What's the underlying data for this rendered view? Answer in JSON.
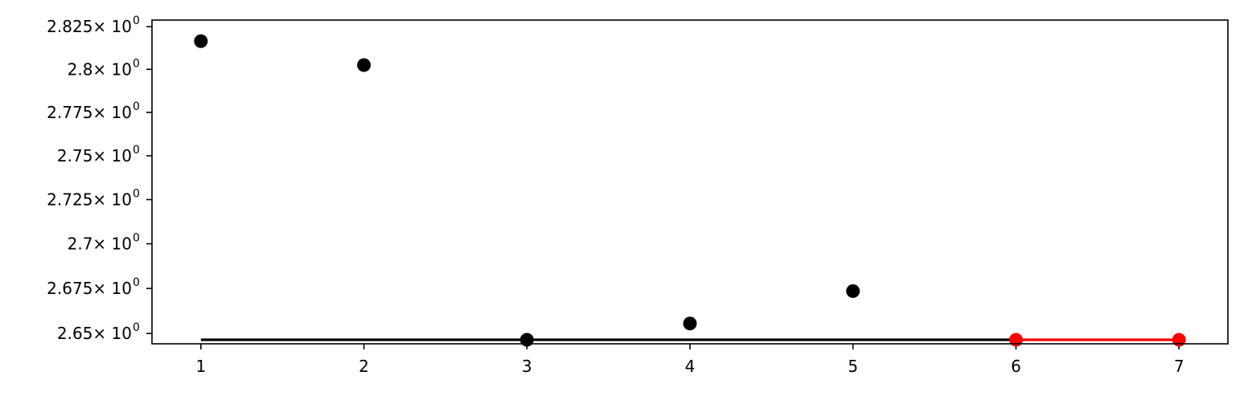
{
  "chart_data": {
    "type": "scatter",
    "title": "",
    "xlabel": "",
    "ylabel": "",
    "xlim": [
      0.7,
      7.3
    ],
    "ylim": [
      2.6443,
      2.8289
    ],
    "y_scale": "log",
    "grid": false,
    "x_ticks": [
      {
        "value": 1,
        "label": "1"
      },
      {
        "value": 2,
        "label": "2"
      },
      {
        "value": 3,
        "label": "3"
      },
      {
        "value": 4,
        "label": "4"
      },
      {
        "value": 5,
        "label": "5"
      },
      {
        "value": 6,
        "label": "6"
      },
      {
        "value": 7,
        "label": "7"
      }
    ],
    "y_ticks": [
      {
        "value": 2.825,
        "mantissa": "2.825",
        "base": "× 10",
        "exponent": "0"
      },
      {
        "value": 2.8,
        "mantissa": "2.8",
        "base": "× 10",
        "exponent": "0"
      },
      {
        "value": 2.775,
        "mantissa": "2.775",
        "base": "× 10",
        "exponent": "0"
      },
      {
        "value": 2.75,
        "mantissa": "2.75",
        "base": "× 10",
        "exponent": "0"
      },
      {
        "value": 2.725,
        "mantissa": "2.725",
        "base": "× 10",
        "exponent": "0"
      },
      {
        "value": 2.7,
        "mantissa": "2.7",
        "base": "× 10",
        "exponent": "0"
      },
      {
        "value": 2.675,
        "mantissa": "2.675",
        "base": "× 10",
        "exponent": "0"
      },
      {
        "value": 2.65,
        "mantissa": "2.65",
        "base": "× 10",
        "exponent": "0"
      }
    ],
    "series": [
      {
        "color": "#000000",
        "style": "markers",
        "x": [
          1,
          2,
          3,
          4,
          5
        ],
        "y": [
          2.8165,
          2.8025,
          2.6465,
          2.6555,
          2.6735
        ]
      },
      {
        "color": "#000000",
        "style": "line",
        "x": [
          1,
          6
        ],
        "y": [
          2.6465,
          2.6465
        ]
      },
      {
        "color": "#ff0000",
        "style": "line+markers",
        "x": [
          6,
          7
        ],
        "y": [
          2.6465,
          2.6465
        ]
      }
    ]
  }
}
